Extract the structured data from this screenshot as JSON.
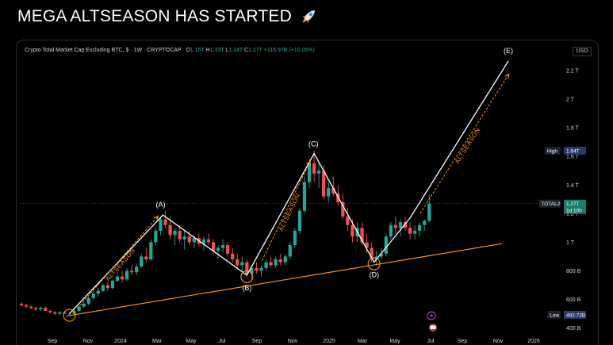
{
  "headline": "MEGA ALTSEASON HAS STARTED",
  "infobar": {
    "title": "Crypto Total Market Cap Excluding BTC, $ · 1W · CRYPTOCAP",
    "o_label": "O",
    "o_value": "1.15T",
    "h_label": "H",
    "h_value": "1.33T",
    "l_label": "L",
    "l_value": "1.14T",
    "c_label": "C",
    "c_value": "1.27T",
    "change": "+115.97B (+10.05%)"
  },
  "currency_button": "USD",
  "colors": {
    "up": "#26a69a",
    "down": "#ef5350",
    "accent": "#f7931a",
    "wave": "#ffffff"
  },
  "chart_data": {
    "type": "candlestick",
    "symbol": "TOTAL2",
    "interval": "1W",
    "x_ticks": [
      "Sep",
      "Nov",
      "2024",
      "Mar",
      "May",
      "Jul",
      "Sep",
      "Nov",
      "2025",
      "Mar",
      "May",
      "Jul",
      "Sep",
      "Nov",
      "2026"
    ],
    "y_ticks": [
      "2.2 T",
      "2 T",
      "1.8 T",
      "1.6 T",
      "1.4 T",
      "1.2 T",
      "1 T",
      "800 B",
      "600 B",
      "400 B"
    ],
    "y_range": [
      0.37,
      2.3
    ],
    "y_scale": "linear",
    "high_marker": {
      "label": "High",
      "value": "1.64T"
    },
    "low_marker": {
      "label": "Low",
      "value": "492.72B"
    },
    "current_marker": {
      "label": "TOTAL2",
      "value": "1.27T",
      "countdown": "1d 10h"
    },
    "wave_labels": [
      "(A)",
      "(B)",
      "(C)",
      "(D)",
      "(E)"
    ],
    "annotations": [
      "ALTSEASON",
      "ALTSEASON",
      "ALTSEASON"
    ],
    "candles": [
      [
        0.57,
        0.58,
        0.55,
        0.56
      ],
      [
        0.56,
        0.57,
        0.54,
        0.55
      ],
      [
        0.55,
        0.56,
        0.53,
        0.54
      ],
      [
        0.54,
        0.55,
        0.52,
        0.53
      ],
      [
        0.53,
        0.55,
        0.52,
        0.54
      ],
      [
        0.54,
        0.55,
        0.52,
        0.52
      ],
      [
        0.52,
        0.53,
        0.5,
        0.51
      ],
      [
        0.51,
        0.52,
        0.49,
        0.5
      ],
      [
        0.5,
        0.52,
        0.49,
        0.51
      ],
      [
        0.51,
        0.52,
        0.5,
        0.5
      ],
      [
        0.5,
        0.51,
        0.49,
        0.5
      ],
      [
        0.5,
        0.53,
        0.49,
        0.52
      ],
      [
        0.52,
        0.56,
        0.51,
        0.55
      ],
      [
        0.55,
        0.58,
        0.54,
        0.57
      ],
      [
        0.57,
        0.62,
        0.56,
        0.61
      ],
      [
        0.61,
        0.66,
        0.6,
        0.64
      ],
      [
        0.64,
        0.68,
        0.62,
        0.66
      ],
      [
        0.66,
        0.71,
        0.65,
        0.7
      ],
      [
        0.7,
        0.72,
        0.66,
        0.68
      ],
      [
        0.68,
        0.74,
        0.67,
        0.73
      ],
      [
        0.73,
        0.78,
        0.72,
        0.76
      ],
      [
        0.76,
        0.8,
        0.72,
        0.74
      ],
      [
        0.74,
        0.82,
        0.73,
        0.8
      ],
      [
        0.8,
        0.84,
        0.77,
        0.79
      ],
      [
        0.79,
        0.85,
        0.77,
        0.83
      ],
      [
        0.83,
        0.92,
        0.82,
        0.9
      ],
      [
        0.9,
        0.96,
        0.86,
        0.88
      ],
      [
        0.88,
        1.02,
        0.87,
        1.0
      ],
      [
        1.0,
        1.1,
        0.98,
        1.08
      ],
      [
        1.08,
        1.18,
        1.05,
        1.16
      ],
      [
        1.16,
        1.22,
        1.1,
        1.12
      ],
      [
        1.12,
        1.18,
        1.02,
        1.05
      ],
      [
        1.05,
        1.1,
        0.98,
        1.08
      ],
      [
        1.08,
        1.12,
        1.0,
        1.02
      ],
      [
        1.02,
        1.08,
        0.95,
        1.04
      ],
      [
        1.04,
        1.08,
        0.98,
        1.0
      ],
      [
        1.0,
        1.05,
        0.96,
        1.03
      ],
      [
        1.03,
        1.06,
        0.97,
        0.99
      ],
      [
        0.99,
        1.04,
        0.94,
        1.02
      ],
      [
        1.02,
        1.06,
        0.98,
        1.0
      ],
      [
        1.0,
        1.02,
        0.92,
        0.94
      ],
      [
        0.94,
        0.98,
        0.88,
        0.96
      ],
      [
        0.96,
        1.02,
        0.93,
        0.98
      ],
      [
        0.98,
        1.0,
        0.9,
        0.92
      ],
      [
        0.92,
        0.96,
        0.86,
        0.88
      ],
      [
        0.88,
        0.92,
        0.82,
        0.84
      ],
      [
        0.84,
        0.9,
        0.8,
        0.86
      ],
      [
        0.86,
        0.88,
        0.76,
        0.78
      ],
      [
        0.78,
        0.84,
        0.74,
        0.82
      ],
      [
        0.82,
        0.86,
        0.78,
        0.8
      ],
      [
        0.8,
        0.84,
        0.76,
        0.82
      ],
      [
        0.82,
        0.88,
        0.8,
        0.86
      ],
      [
        0.86,
        0.9,
        0.82,
        0.84
      ],
      [
        0.84,
        0.9,
        0.82,
        0.88
      ],
      [
        0.88,
        0.92,
        0.84,
        0.86
      ],
      [
        0.86,
        0.92,
        0.84,
        0.9
      ],
      [
        0.9,
        1.0,
        0.88,
        0.98
      ],
      [
        0.98,
        1.1,
        0.96,
        1.08
      ],
      [
        1.08,
        1.24,
        1.06,
        1.22
      ],
      [
        1.22,
        1.46,
        1.2,
        1.42
      ],
      [
        1.42,
        1.58,
        1.38,
        1.55
      ],
      [
        1.55,
        1.64,
        1.42,
        1.48
      ],
      [
        1.48,
        1.56,
        1.38,
        1.5
      ],
      [
        1.5,
        1.54,
        1.3,
        1.32
      ],
      [
        1.32,
        1.42,
        1.28,
        1.38
      ],
      [
        1.38,
        1.46,
        1.32,
        1.34
      ],
      [
        1.34,
        1.4,
        1.26,
        1.28
      ],
      [
        1.28,
        1.34,
        1.16,
        1.18
      ],
      [
        1.18,
        1.24,
        1.08,
        1.12
      ],
      [
        1.12,
        1.16,
        1.0,
        1.04
      ],
      [
        1.04,
        1.14,
        1.0,
        1.1
      ],
      [
        1.1,
        1.14,
        0.98,
        1.0
      ],
      [
        1.0,
        1.06,
        0.92,
        0.96
      ],
      [
        0.96,
        1.0,
        0.86,
        0.88
      ],
      [
        0.88,
        0.94,
        0.84,
        0.9
      ],
      [
        0.9,
        0.96,
        0.88,
        0.92
      ],
      [
        0.92,
        1.06,
        0.9,
        1.04
      ],
      [
        1.04,
        1.14,
        1.02,
        1.12
      ],
      [
        1.12,
        1.18,
        1.06,
        1.1
      ],
      [
        1.1,
        1.16,
        1.04,
        1.14
      ],
      [
        1.14,
        1.18,
        1.08,
        1.1
      ],
      [
        1.1,
        1.14,
        1.02,
        1.06
      ],
      [
        1.06,
        1.12,
        1.02,
        1.08
      ],
      [
        1.08,
        1.14,
        1.04,
        1.12
      ],
      [
        1.12,
        1.16,
        1.08,
        1.15
      ],
      [
        1.15,
        1.33,
        1.14,
        1.27
      ]
    ]
  }
}
